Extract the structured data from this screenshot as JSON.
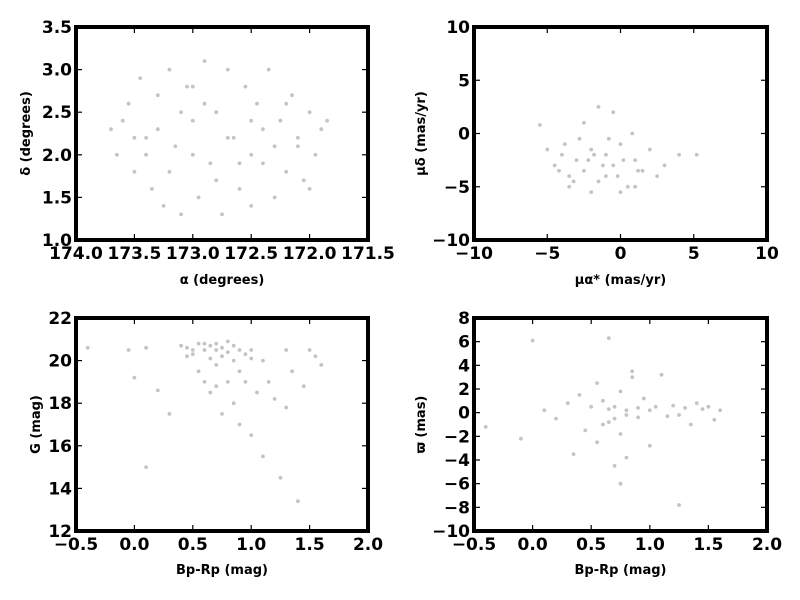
{
  "chart_data": [
    {
      "type": "scatter",
      "xlabel": "α (degrees)",
      "ylabel": "δ (degrees)",
      "xlim": [
        174.0,
        171.5
      ],
      "ylim": [
        1.0,
        3.5
      ],
      "x_ticks": [
        "174.0",
        "173.5",
        "173.0",
        "172.5",
        "172.0",
        "171.5"
      ],
      "y_ticks": [
        "1.0",
        "1.5",
        "2.0",
        "2.5",
        "3.0",
        "3.5"
      ],
      "grid": false,
      "point_color": "#c4c4c4",
      "series": [
        {
          "x": [
            173.7,
            173.65,
            173.55,
            173.5,
            173.45,
            173.4,
            173.35,
            173.3,
            173.25,
            173.2,
            173.15,
            173.1,
            173.05,
            173.0,
            172.95,
            172.9,
            172.85,
            172.8,
            172.75,
            172.7,
            172.65,
            172.6,
            172.55,
            172.5,
            172.45,
            172.4,
            172.35,
            172.3,
            172.25,
            172.2,
            172.15,
            172.1,
            172.05,
            172.0,
            171.95,
            171.9,
            171.85,
            173.6,
            173.3,
            173.0,
            172.7,
            172.4,
            172.1,
            173.2,
            172.9,
            172.6,
            172.3,
            173.4,
            173.1,
            172.8,
            172.5,
            172.2,
            173.5,
            173.0,
            172.5,
            172.0
          ],
          "y": [
            2.3,
            2.0,
            2.6,
            1.8,
            2.9,
            2.2,
            1.6,
            2.7,
            1.4,
            3.0,
            2.1,
            1.3,
            2.8,
            2.4,
            1.5,
            3.1,
            1.9,
            2.5,
            1.3,
            3.0,
            2.2,
            1.6,
            2.8,
            1.4,
            2.6,
            1.9,
            3.0,
            1.5,
            2.4,
            1.8,
            2.7,
            2.1,
            1.7,
            2.5,
            2.0,
            2.3,
            2.4,
            2.4,
            2.3,
            2.0,
            2.2,
            2.3,
            2.2,
            1.8,
            2.6,
            1.9,
            2.1,
            2.0,
            2.5,
            1.7,
            2.0,
            2.6,
            2.2,
            2.8,
            2.4,
            1.6
          ]
        }
      ]
    },
    {
      "type": "scatter",
      "xlabel": "μα* (mas/yr)",
      "ylabel": "μδ (mas/yr)",
      "xlim": [
        -10,
        10
      ],
      "ylim": [
        -10,
        10
      ],
      "x_ticks": [
        "−10",
        "−5",
        "0",
        "5",
        "10"
      ],
      "y_ticks": [
        "−10",
        "−5",
        "0",
        "5",
        "10"
      ],
      "grid": false,
      "point_color": "#c4c4c4",
      "series": [
        {
          "x": [
            -5.5,
            -5.0,
            -4.5,
            -4.0,
            -3.5,
            -3.0,
            -2.5,
            -2.0,
            -1.5,
            -1.0,
            -0.5,
            0.0,
            0.5,
            1.0,
            1.5,
            2.0,
            2.5,
            3.0,
            4.0,
            5.2,
            -3.8,
            -2.8,
            -1.8,
            -0.8,
            0.2,
            1.2,
            -4.2,
            -3.2,
            -2.2,
            -1.2,
            -0.2,
            0.8,
            -2.5,
            -1.5,
            -0.5,
            -3.5,
            -2.0,
            -1.0,
            0.0,
            1.0
          ],
          "y": [
            0.8,
            -1.5,
            -3.0,
            -2.0,
            -4.0,
            -2.5,
            -3.5,
            -1.5,
            -4.5,
            -2.0,
            -3.0,
            -1.0,
            -5.0,
            -2.5,
            -3.5,
            -1.5,
            -4.0,
            -3.0,
            -2.0,
            -2.0,
            -1.0,
            -0.5,
            -2.0,
            -0.5,
            -2.5,
            -3.5,
            -3.5,
            -4.5,
            -2.5,
            -3.0,
            -4.0,
            0.0,
            1.0,
            2.5,
            2.0,
            -5.0,
            -5.5,
            -4.0,
            -5.5,
            -5.0
          ]
        }
      ]
    },
    {
      "type": "scatter",
      "xlabel": "Bp-Rp (mag)",
      "ylabel": "G (mag)",
      "xlim": [
        -0.5,
        2.0
      ],
      "ylim": [
        12,
        22
      ],
      "x_ticks": [
        "−0.5",
        "0.0",
        "0.5",
        "1.0",
        "1.5",
        "2.0"
      ],
      "y_ticks": [
        "12",
        "14",
        "16",
        "18",
        "20",
        "22"
      ],
      "grid": false,
      "point_color": "#c4c4c4",
      "series": [
        {
          "x": [
            -0.4,
            -0.05,
            0.0,
            0.1,
            0.1,
            0.2,
            0.3,
            0.4,
            0.45,
            0.5,
            0.55,
            0.6,
            0.6,
            0.65,
            0.65,
            0.7,
            0.7,
            0.7,
            0.75,
            0.75,
            0.8,
            0.8,
            0.85,
            0.85,
            0.9,
            0.9,
            0.95,
            1.0,
            1.0,
            1.05,
            1.1,
            1.1,
            1.15,
            1.2,
            1.25,
            1.3,
            1.3,
            1.35,
            1.4,
            1.45,
            1.5,
            1.55,
            1.6,
            0.7,
            0.75,
            0.8,
            0.85,
            0.9,
            0.95,
            1.0,
            0.65,
            0.6,
            0.55,
            0.5,
            0.45
          ],
          "y": [
            20.6,
            20.5,
            19.2,
            20.6,
            15.0,
            18.6,
            17.5,
            20.7,
            20.2,
            20.5,
            19.5,
            20.8,
            19.0,
            20.1,
            18.5,
            20.5,
            19.8,
            18.8,
            20.2,
            17.5,
            20.4,
            19.0,
            20.0,
            18.0,
            19.5,
            17.0,
            19.0,
            20.5,
            16.5,
            18.5,
            20.0,
            15.5,
            19.0,
            18.2,
            14.5,
            20.5,
            17.8,
            19.5,
            13.4,
            18.8,
            20.5,
            20.2,
            19.8,
            20.8,
            20.6,
            20.9,
            20.7,
            20.5,
            20.3,
            20.1,
            20.7,
            20.5,
            20.8,
            20.3,
            20.6
          ]
        }
      ]
    },
    {
      "type": "scatter",
      "xlabel": "Bp-Rp (mag)",
      "ylabel": "ϖ (mas)",
      "xlim": [
        -0.5,
        2.0
      ],
      "ylim": [
        -10,
        8
      ],
      "x_ticks": [
        "−0.5",
        "0.0",
        "0.5",
        "1.0",
        "1.5",
        "2.0"
      ],
      "y_ticks": [
        "−10",
        "−8",
        "−6",
        "−4",
        "−2",
        "0",
        "2",
        "4",
        "6",
        "8"
      ],
      "grid": false,
      "point_color": "#c4c4c4",
      "series": [
        {
          "x": [
            -0.4,
            -0.1,
            0.0,
            0.1,
            0.2,
            0.3,
            0.35,
            0.4,
            0.45,
            0.5,
            0.55,
            0.55,
            0.6,
            0.6,
            0.65,
            0.65,
            0.7,
            0.7,
            0.75,
            0.75,
            0.8,
            0.8,
            0.85,
            0.9,
            0.9,
            0.95,
            1.0,
            1.0,
            1.05,
            1.1,
            1.15,
            1.2,
            1.25,
            1.3,
            1.35,
            1.4,
            1.45,
            1.5,
            1.55,
            1.6,
            0.65,
            0.7,
            0.75,
            0.8,
            0.85,
            1.25
          ],
          "y": [
            -1.2,
            -2.2,
            6.1,
            0.2,
            -0.5,
            0.8,
            -3.5,
            1.5,
            -1.5,
            0.5,
            2.5,
            -2.5,
            1.0,
            -1.0,
            0.3,
            -0.8,
            0.5,
            -0.5,
            1.8,
            -1.8,
            0.2,
            -0.2,
            3.0,
            0.4,
            -0.4,
            1.2,
            0.2,
            -2.8,
            0.5,
            3.2,
            -0.3,
            0.6,
            -0.2,
            0.4,
            -1.0,
            0.8,
            0.3,
            0.5,
            -0.6,
            0.2,
            6.3,
            -4.5,
            -6.0,
            -3.8,
            3.5,
            -7.8
          ]
        }
      ]
    }
  ]
}
